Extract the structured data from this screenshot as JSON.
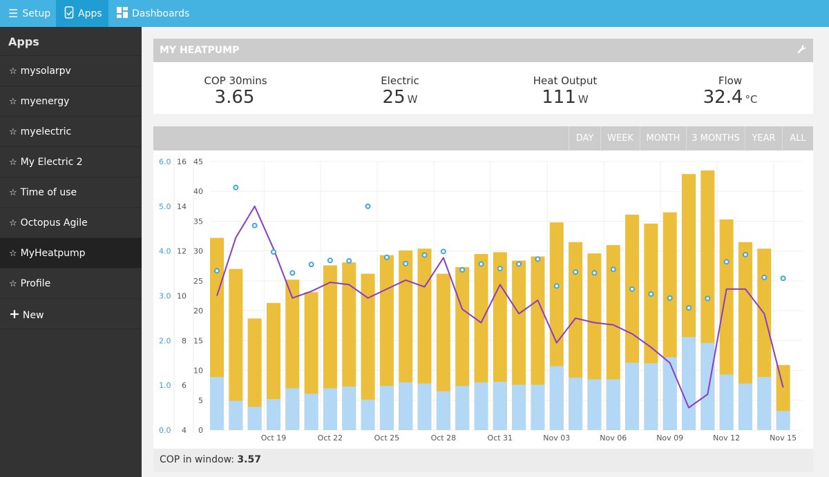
{
  "nav": {
    "setup_label": "Setup",
    "apps_label": "Apps",
    "dashboards_label": "Dashboards"
  },
  "sidebar": {
    "title": "Apps",
    "items": [
      {
        "label": "mysolarpv"
      },
      {
        "label": "myenergy"
      },
      {
        "label": "myelectric"
      },
      {
        "label": "My Electric 2"
      },
      {
        "label": "Time of use"
      },
      {
        "label": "Octopus Agile"
      },
      {
        "label": "MyHeatpump",
        "active": true
      },
      {
        "label": "Profile"
      }
    ],
    "new_label": "New"
  },
  "panel": {
    "title": "MY HEATPUMP"
  },
  "stats": [
    {
      "label": "COP 30mins",
      "value": "3.65",
      "unit": ""
    },
    {
      "label": "Electric",
      "value": "25",
      "unit": "W"
    },
    {
      "label": "Heat Output",
      "value": "111",
      "unit": "W"
    },
    {
      "label": "Flow",
      "value": "32.4",
      "unit": "°C"
    }
  ],
  "ranges": [
    "DAY",
    "WEEK",
    "MONTH",
    "3 MONTHS",
    "YEAR",
    "ALL"
  ],
  "footer": {
    "label": "COP in window:",
    "value": "3.57"
  },
  "colors": {
    "topbar": "#44b3e2",
    "heat": "#ebbf3c",
    "electric": "#b2d8f6",
    "cop_points": "#40a6d9",
    "flow_line": "#8a3bc4"
  },
  "chart_data": {
    "type": "bar",
    "x_start": "Oct 16",
    "x_ticks": [
      "Oct 19",
      "Oct 22",
      "Oct 25",
      "Oct 28",
      "Oct 31",
      "Nov 03",
      "Nov 06",
      "Nov 09",
      "Nov 12",
      "Nov 15"
    ],
    "axis_left_cop": {
      "ylim": [
        0,
        6
      ],
      "ticks": [
        "0.0",
        "1.0",
        "2.0",
        "3.0",
        "4.0",
        "5.0",
        "6.0"
      ]
    },
    "axis_left_temp": {
      "ylim": [
        4,
        16
      ],
      "ticks": [
        "4",
        "6",
        "8",
        "10",
        "12",
        "14",
        "16"
      ]
    },
    "axis_left_kwh": {
      "ylim": [
        0,
        45
      ],
      "ticks": [
        "0",
        "5",
        "10",
        "15",
        "20",
        "25",
        "30",
        "35",
        "40",
        "45"
      ]
    },
    "series": [
      {
        "kind": "bars",
        "axis": "kwh",
        "values": [
          8.9,
          4.9,
          3.9,
          5.2,
          7.0,
          6.1,
          7.0,
          7.3,
          5.1,
          7.4,
          8.0,
          7.8,
          6.5,
          7.4,
          8.0,
          8.1,
          7.6,
          7.6,
          10.7,
          8.8,
          8.5,
          8.5,
          11.3,
          11.2,
          12.2,
          15.6,
          14.6,
          9.3,
          7.8,
          8.9,
          3.2
        ]
      },
      {
        "kind": "bars",
        "axis": "kwh",
        "values": [
          32.2,
          27.0,
          18.7,
          21.3,
          25.2,
          23.1,
          27.6,
          28.1,
          26.2,
          29.3,
          30.1,
          30.4,
          26.2,
          27.3,
          29.5,
          29.8,
          28.4,
          29.1,
          34.8,
          31.5,
          29.6,
          31.0,
          36.1,
          34.6,
          36.5,
          42.9,
          43.5,
          35.3,
          31.5,
          30.4,
          10.9
        ]
      },
      {
        "kind": "points",
        "axis": "cop",
        "values": [
          3.56,
          5.42,
          4.57,
          3.98,
          3.51,
          3.7,
          3.79,
          3.78,
          5.0,
          3.86,
          3.72,
          3.91,
          3.99,
          3.58,
          3.71,
          3.61,
          3.71,
          3.82,
          3.22,
          3.53,
          3.51,
          3.59,
          3.15,
          3.04,
          2.95,
          2.73,
          2.94,
          3.76,
          3.92,
          3.41,
          3.39
        ]
      },
      {
        "kind": "line",
        "axis": "temp",
        "values": [
          10.0,
          12.6,
          14.0,
          12.1,
          9.9,
          10.2,
          10.6,
          10.5,
          9.9,
          10.3,
          10.7,
          10.4,
          11.7,
          9.4,
          8.8,
          10.5,
          9.2,
          9.8,
          7.9,
          9.0,
          8.8,
          8.7,
          8.3,
          7.7,
          7.0,
          5.0,
          5.6,
          10.3,
          10.3,
          9.2,
          5.9
        ]
      }
    ]
  }
}
